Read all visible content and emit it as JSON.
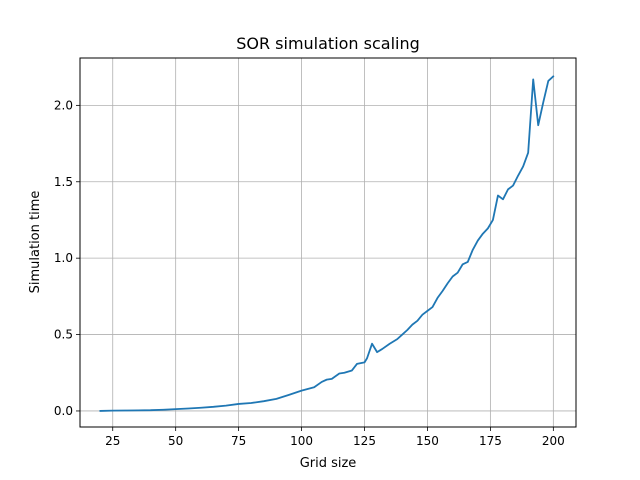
{
  "chart_data": {
    "type": "line",
    "title": "SOR simulation scaling",
    "xlabel": "Grid size",
    "ylabel": "Simulation time",
    "xlim": [
      12,
      209
    ],
    "ylim": [
      -0.105,
      2.31
    ],
    "xticks": [
      25,
      50,
      75,
      100,
      125,
      150,
      175,
      200
    ],
    "yticks": [
      0.0,
      0.5,
      1.0,
      1.5,
      2.0
    ],
    "ytick_labels": [
      "0.0",
      "0.5",
      "1.0",
      "1.5",
      "2.0"
    ],
    "grid": true,
    "line_color": "#1f77b4",
    "series": [
      {
        "x": [
          20,
          25,
          30,
          35,
          40,
          45,
          50,
          55,
          60,
          65,
          70,
          75,
          80,
          85,
          90,
          95,
          100,
          105,
          108,
          110,
          112,
          115,
          117,
          120,
          122,
          125,
          126,
          128,
          130,
          132,
          135,
          138,
          140,
          142,
          144,
          146,
          148,
          150,
          152,
          154,
          156,
          158,
          160,
          162,
          164,
          166,
          168,
          170,
          172,
          174,
          176,
          178,
          180,
          182,
          184,
          186,
          188,
          190,
          192,
          194,
          196,
          198,
          200
        ],
        "y": [
          0.0,
          0.002,
          0.003,
          0.004,
          0.005,
          0.008,
          0.012,
          0.016,
          0.021,
          0.027,
          0.035,
          0.046,
          0.052,
          0.064,
          0.079,
          0.105,
          0.133,
          0.155,
          0.19,
          0.205,
          0.21,
          0.245,
          0.25,
          0.265,
          0.308,
          0.318,
          0.345,
          0.44,
          0.385,
          0.405,
          0.44,
          0.47,
          0.5,
          0.53,
          0.565,
          0.59,
          0.63,
          0.655,
          0.68,
          0.74,
          0.785,
          0.835,
          0.88,
          0.905,
          0.96,
          0.975,
          1.055,
          1.115,
          1.16,
          1.195,
          1.25,
          1.41,
          1.385,
          1.45,
          1.475,
          1.54,
          1.6,
          1.69,
          2.17,
          1.87,
          2.02,
          2.16,
          2.19
        ]
      }
    ]
  }
}
